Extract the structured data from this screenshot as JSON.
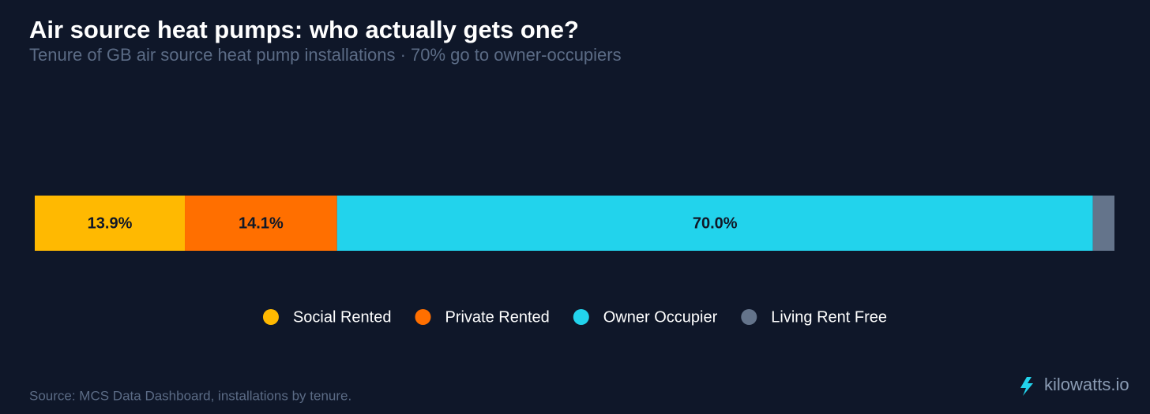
{
  "chart_data": {
    "type": "stacked_bar",
    "title": "Air source heat pumps: who actually gets one?",
    "subtitle": "Tenure of GB air source heat pump installations · 70% go to owner-occupiers",
    "xlim": [
      0,
      100
    ],
    "series": [
      {
        "name": "Social Rented",
        "color": "#ffb901",
        "values": [
          13.9
        ],
        "value_labels": [
          "13.9%"
        ]
      },
      {
        "name": "Private Rented",
        "color": "#ff6f00",
        "values": [
          14.1
        ],
        "value_labels": [
          "14.1%"
        ]
      },
      {
        "name": "Owner Occupier",
        "color": "#22d3ec",
        "values": [
          70.0
        ],
        "value_labels": [
          "70.0%"
        ]
      },
      {
        "name": "Living Rent Free",
        "color": "#64748b",
        "values": [
          2.0
        ],
        "value_labels": [
          null
        ]
      }
    ]
  },
  "footer": {
    "source": "Source: MCS Data Dashboard, installations by tenure.",
    "brand": "kilowatts.io"
  }
}
